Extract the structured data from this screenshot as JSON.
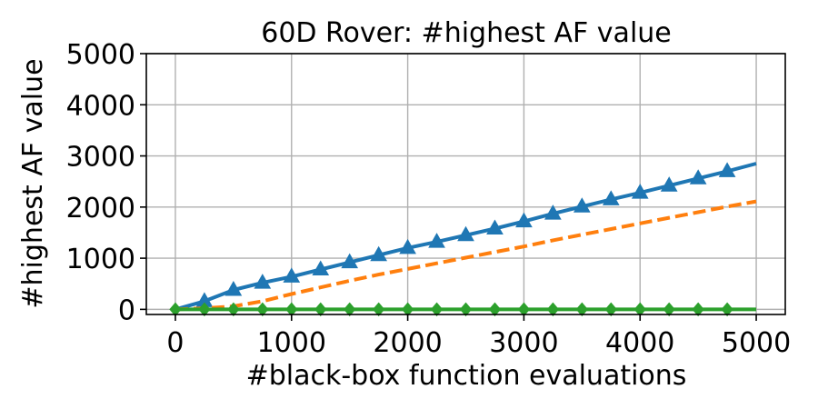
{
  "chart_data": {
    "type": "line",
    "title": "60D Rover: #highest AF value",
    "xlabel": "#black-box function evaluations",
    "ylabel": "#highest AF value",
    "xlim": [
      -250,
      5250
    ],
    "ylim": [
      -100,
      5000
    ],
    "xticks": [
      0,
      1000,
      2000,
      3000,
      4000,
      5000
    ],
    "yticks": [
      0,
      1000,
      2000,
      3000,
      4000,
      5000
    ],
    "grid": true,
    "legend": "none",
    "series": [
      {
        "color": "#1f77b4",
        "linestyle": "solid",
        "marker": "triangle",
        "x": [
          0,
          250,
          500,
          750,
          1000,
          1250,
          1500,
          1750,
          2000,
          2250,
          2500,
          2750,
          3000,
          3250,
          3500,
          3750,
          4000,
          4250,
          4500,
          4750,
          5000
        ],
        "values": [
          0,
          160,
          380,
          520,
          640,
          780,
          920,
          1060,
          1200,
          1320,
          1450,
          1580,
          1720,
          1870,
          2010,
          2150,
          2280,
          2420,
          2560,
          2700,
          2850
        ],
        "marker_x": [
          250,
          500,
          750,
          1000,
          1250,
          1500,
          1750,
          2000,
          2250,
          2500,
          2750,
          3000,
          3250,
          3500,
          3750,
          4000,
          4250,
          4500,
          4750
        ]
      },
      {
        "color": "#ff7f0e",
        "linestyle": "dashed",
        "marker": "none",
        "x": [
          0,
          250,
          500,
          750,
          1000,
          1250,
          1500,
          1750,
          2000,
          2250,
          2500,
          2750,
          3000,
          3250,
          3500,
          3750,
          4000,
          4250,
          4500,
          4750,
          5000
        ],
        "values": [
          0,
          20,
          60,
          160,
          300,
          430,
          560,
          680,
          790,
          900,
          1010,
          1120,
          1230,
          1350,
          1460,
          1570,
          1680,
          1790,
          1900,
          2010,
          2110
        ]
      },
      {
        "color": "#2ca02c",
        "linestyle": "solid",
        "marker": "diamond",
        "x": [
          0,
          250,
          500,
          750,
          1000,
          1250,
          1500,
          1750,
          2000,
          2250,
          2500,
          2750,
          3000,
          3250,
          3500,
          3750,
          4000,
          4250,
          4500,
          4750,
          5000
        ],
        "values": [
          0,
          0,
          0,
          0,
          0,
          0,
          0,
          0,
          0,
          0,
          0,
          0,
          0,
          0,
          0,
          0,
          0,
          0,
          0,
          0,
          0
        ],
        "marker_x": [
          0,
          250,
          500,
          750,
          1000,
          1250,
          1500,
          1750,
          2000,
          2250,
          2500,
          2750,
          3000,
          3250,
          3500,
          3750,
          4000,
          4250,
          4500,
          4750
        ]
      }
    ]
  }
}
